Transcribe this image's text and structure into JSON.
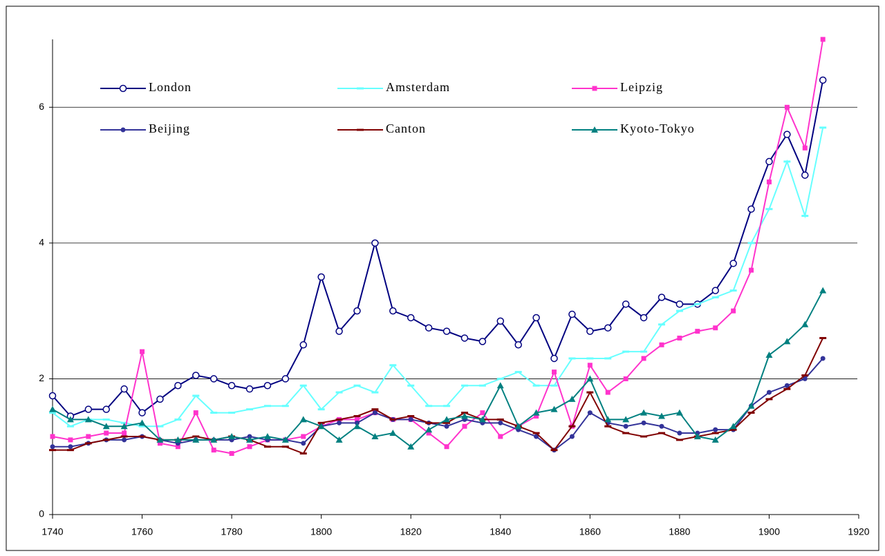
{
  "chart_data": {
    "type": "line",
    "x": [
      1740,
      1744,
      1748,
      1752,
      1756,
      1760,
      1764,
      1768,
      1772,
      1776,
      1780,
      1784,
      1788,
      1792,
      1796,
      1800,
      1804,
      1808,
      1812,
      1816,
      1820,
      1824,
      1828,
      1832,
      1836,
      1840,
      1844,
      1848,
      1852,
      1856,
      1860,
      1864,
      1868,
      1872,
      1876,
      1880,
      1884,
      1888,
      1892,
      1896,
      1900,
      1904,
      1908,
      1912
    ],
    "series": [
      {
        "name": "London",
        "color": "#000080",
        "marker": "circle",
        "values": [
          1.75,
          1.45,
          1.55,
          1.55,
          1.85,
          1.5,
          1.7,
          1.9,
          2.05,
          2.0,
          1.9,
          1.85,
          1.9,
          2.0,
          2.5,
          3.5,
          2.7,
          3.0,
          4.0,
          3.0,
          2.9,
          2.75,
          2.7,
          2.6,
          2.55,
          2.85,
          2.5,
          2.9,
          2.3,
          2.95,
          2.7,
          2.75,
          3.1,
          2.9,
          3.2,
          3.1,
          3.1,
          3.3,
          3.7,
          4.5,
          5.2,
          5.6,
          5.0,
          6.4
        ]
      },
      {
        "name": "Amsterdam",
        "color": "#66ffff",
        "marker": "dash",
        "values": [
          1.5,
          1.3,
          1.4,
          1.4,
          1.35,
          1.3,
          1.3,
          1.4,
          1.75,
          1.5,
          1.5,
          1.55,
          1.6,
          1.6,
          1.9,
          1.55,
          1.8,
          1.9,
          1.8,
          2.2,
          1.9,
          1.6,
          1.6,
          1.9,
          1.9,
          2.0,
          2.1,
          1.9,
          1.9,
          2.3,
          2.3,
          2.3,
          2.4,
          2.4,
          2.8,
          3.0,
          3.1,
          3.2,
          3.3,
          4.0,
          4.5,
          5.2,
          4.4,
          5.7
        ]
      },
      {
        "name": "Leipzig",
        "color": "#ff33cc",
        "marker": "square",
        "values": [
          1.15,
          1.1,
          1.15,
          1.2,
          1.2,
          2.4,
          1.05,
          1.0,
          1.5,
          0.95,
          0.9,
          1.0,
          1.1,
          1.1,
          1.15,
          1.3,
          1.4,
          1.4,
          1.5,
          1.4,
          1.4,
          1.2,
          1.0,
          1.3,
          1.5,
          1.15,
          1.3,
          1.45,
          2.1,
          1.3,
          2.2,
          1.8,
          2.0,
          2.3,
          2.5,
          2.6,
          2.7,
          2.75,
          3.0,
          3.6,
          4.9,
          6.0,
          5.4,
          7.0
        ]
      },
      {
        "name": "Beijing",
        "color": "#333399",
        "marker": "dot",
        "values": [
          1.0,
          1.0,
          1.05,
          1.1,
          1.1,
          1.15,
          1.1,
          1.05,
          1.1,
          1.1,
          1.1,
          1.15,
          1.1,
          1.1,
          1.05,
          1.3,
          1.35,
          1.35,
          1.5,
          1.4,
          1.4,
          1.35,
          1.3,
          1.4,
          1.35,
          1.35,
          1.25,
          1.15,
          0.95,
          1.15,
          1.5,
          1.35,
          1.3,
          1.35,
          1.3,
          1.2,
          1.2,
          1.25,
          1.25,
          1.6,
          1.8,
          1.9,
          2.0,
          2.3
        ]
      },
      {
        "name": "Canton",
        "color": "#800000",
        "marker": "dash",
        "values": [
          0.95,
          0.95,
          1.05,
          1.1,
          1.15,
          1.15,
          1.1,
          1.1,
          1.15,
          1.1,
          1.15,
          1.1,
          1.0,
          1.0,
          0.9,
          1.35,
          1.4,
          1.45,
          1.55,
          1.4,
          1.45,
          1.35,
          1.35,
          1.5,
          1.4,
          1.4,
          1.3,
          1.2,
          0.95,
          1.3,
          1.8,
          1.3,
          1.2,
          1.15,
          1.2,
          1.1,
          1.15,
          1.2,
          1.25,
          1.5,
          1.7,
          1.85,
          2.05,
          2.6
        ]
      },
      {
        "name": "Kyoto-Tokyo",
        "color": "#008080",
        "marker": "triangle",
        "values": [
          1.55,
          1.4,
          1.4,
          1.3,
          1.3,
          1.35,
          1.1,
          1.1,
          1.1,
          1.1,
          1.15,
          1.1,
          1.15,
          1.1,
          1.4,
          1.3,
          1.1,
          1.3,
          1.15,
          1.2,
          1.0,
          1.25,
          1.4,
          1.45,
          1.4,
          1.9,
          1.3,
          1.5,
          1.55,
          1.7,
          2.0,
          1.4,
          1.4,
          1.5,
          1.45,
          1.5,
          1.15,
          1.1,
          1.3,
          1.6,
          2.35,
          2.55,
          2.8,
          3.3
        ]
      }
    ],
    "xlim": [
      1740,
      1920
    ],
    "xticks": [
      1740,
      1760,
      1780,
      1800,
      1820,
      1840,
      1860,
      1880,
      1900,
      1920
    ],
    "ylim": [
      0,
      7
    ],
    "yticks": [
      0,
      2,
      4,
      6
    ],
    "grid": true
  }
}
